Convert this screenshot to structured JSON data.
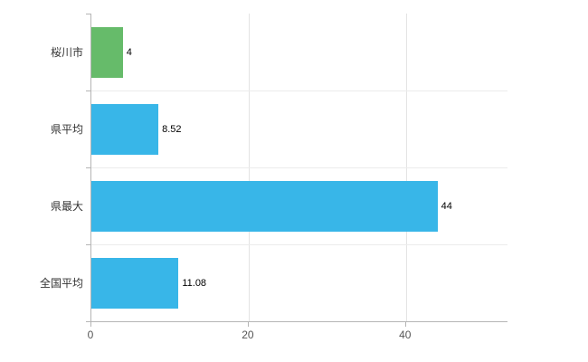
{
  "chart_data": {
    "type": "bar",
    "orientation": "horizontal",
    "title": "",
    "xlabel": "",
    "ylabel": "",
    "categories": [
      "桜川市",
      "県平均",
      "県最大",
      "全国平均"
    ],
    "values": [
      4,
      8.52,
      44,
      11.08
    ],
    "value_labels": [
      "4",
      "8.52",
      "44",
      "11.08"
    ],
    "bar_colors": [
      "#66bb6a",
      "#38b6e8",
      "#38b6e8",
      "#38b6e8"
    ],
    "xlim": [
      0,
      52.9
    ],
    "x_ticks": [
      0,
      20,
      40
    ],
    "x_tick_labels": [
      "0",
      "20",
      "40"
    ],
    "grid": true,
    "legend": "none",
    "background_color": "#ffffff",
    "axis_color": "#b5b5b5"
  }
}
